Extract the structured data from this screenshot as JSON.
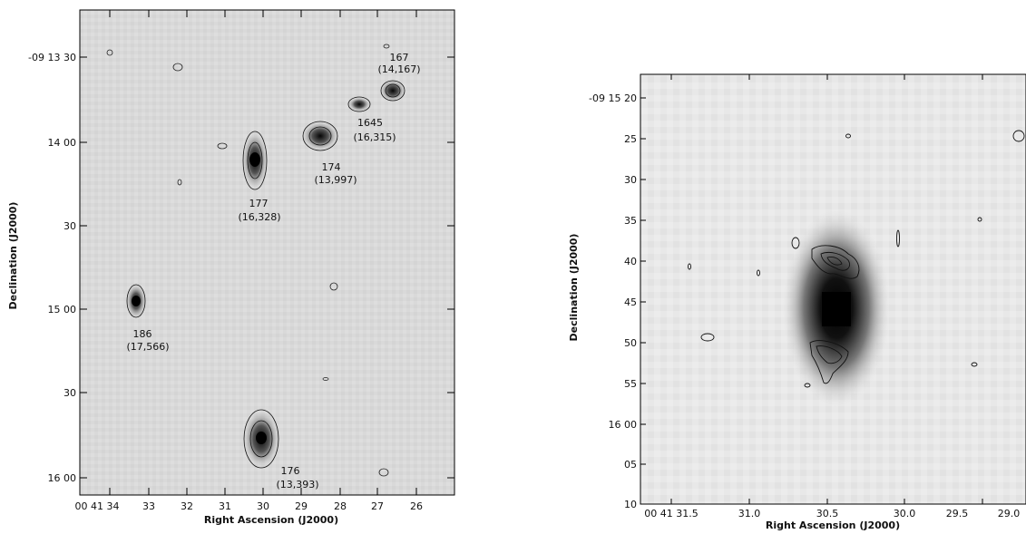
{
  "left_panel": {
    "xlabel": "Right Ascension (J2000)",
    "ylabel": "Declination (J2000)",
    "x_ticks": [
      "00 41 34",
      "33",
      "32",
      "31",
      "30",
      "29",
      "28",
      "27",
      "26"
    ],
    "y_ticks": [
      "-09 13 30",
      "14 00",
      "30",
      "15 00",
      "30",
      "16 00"
    ],
    "galaxies": [
      {
        "id": "167",
        "velocity": "(14,167)"
      },
      {
        "id": "1645",
        "velocity": "(16,315)"
      },
      {
        "id": "174",
        "velocity": "(13,997)"
      },
      {
        "id": "177",
        "velocity": "(16,328)"
      },
      {
        "id": "186",
        "velocity": "(17,566)"
      },
      {
        "id": "176",
        "velocity": "(13,393)"
      }
    ]
  },
  "right_panel": {
    "xlabel": "Right Ascension (J2000)",
    "ylabel": "Declination (J2000)",
    "x_ticks": [
      "00 41 31.5",
      "31.0",
      "30.5",
      "30.0",
      "29.5",
      "29.0"
    ],
    "y_ticks": [
      "-09 15 20",
      "25",
      "30",
      "35",
      "40",
      "45",
      "50",
      "55",
      "16 00",
      "05",
      "10"
    ]
  }
}
